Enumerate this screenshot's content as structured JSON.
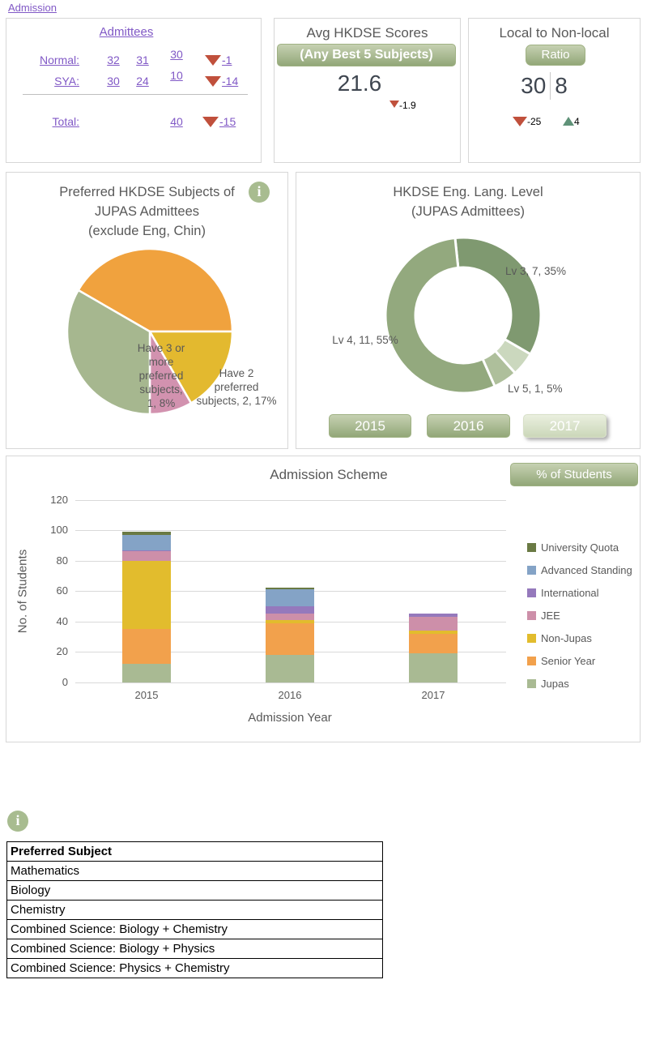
{
  "header": {
    "admission_link": "Admission"
  },
  "icons": {
    "info_glyph": "i"
  },
  "admittees_panel": {
    "title": "Admittees",
    "rows": [
      {
        "label": "Normal:",
        "c1": "32",
        "c2": "31",
        "c3": "30",
        "delta": "-1"
      },
      {
        "label": "SYA:",
        "c1": "30",
        "c2": "24",
        "c3": "10",
        "delta": "-14"
      }
    ],
    "total_label": "Total:",
    "total_value": "40",
    "total_delta": "-15"
  },
  "avg_panel": {
    "title": "Avg HKDSE Scores",
    "button_label": "(Any Best 5 Subjects)",
    "value": "21.6",
    "delta": "-1.9"
  },
  "ratio_panel": {
    "title": "Local to Non-local",
    "button_label": "Ratio",
    "local_value": "30",
    "nonlocal_value": "8",
    "delta_down": "-25",
    "delta_up": "4"
  },
  "info_table": {
    "header": "Preferred Subject",
    "rows": [
      "Mathematics",
      "Biology",
      "Chemistry",
      "Combined Science: Biology + Chemistry",
      "Combined Science: Biology + Physics",
      "Combined Science: Physics + Chemistry"
    ]
  },
  "chart_data": [
    {
      "type": "pie",
      "title": "Preferred HKDSE Subjects of JUPAS Admittees (exclude Eng, Chin)",
      "title_lines": [
        "Preferred HKDSE Subjects of",
        "JUPAS Admittees",
        "(exclude Eng, Chin)"
      ],
      "start_angle": -60,
      "total": 12,
      "slices": [
        {
          "name": "unlabeled-orange",
          "value": 5,
          "pct": 42,
          "color": "#F0A23E",
          "label": ""
        },
        {
          "name": "have-2-preferred",
          "value": 2,
          "pct": 17,
          "color": "#E3B92F",
          "label": "Have 2 preferred subjects, 2, 17%"
        },
        {
          "name": "have-3-or-more-preferred",
          "value": 1,
          "pct": 8,
          "color": "#D292AF",
          "label": "Have 3 or more preferred subjects, 1, 8%"
        },
        {
          "name": "unlabeled-green",
          "value": 4,
          "pct": 33,
          "color": "#A6B78F",
          "label": ""
        }
      ],
      "overlay_labels": [
        {
          "lines": [
            "Have 3 or",
            "more",
            "preferred",
            "subjects,",
            "1, 8%"
          ]
        },
        {
          "lines": [
            "Have 2",
            "preferred",
            "subjects, 2, 17%"
          ]
        }
      ]
    },
    {
      "type": "donut",
      "title": "HKDSE Eng. Lang. Level (JUPAS Admittees)",
      "title_lines": [
        "HKDSE Eng. Lang. Level",
        "(JUPAS Admittees)"
      ],
      "start_angle": -6,
      "total": 20,
      "slices": [
        {
          "name": "lv3",
          "value": 7,
          "pct": 35,
          "color": "#7F9970",
          "label": "Lv 3, 7, 35%"
        },
        {
          "name": "unlabeled",
          "value": 1,
          "pct": 5,
          "color": "#CBD8BE",
          "label": ""
        },
        {
          "name": "lv5",
          "value": 1,
          "pct": 5,
          "color": "#AEBF9B",
          "label": "Lv 5, 1, 5%"
        },
        {
          "name": "lv4",
          "value": 11,
          "pct": 55,
          "color": "#93A97E",
          "label": "Lv 4, 11, 55%"
        }
      ],
      "buttons": [
        {
          "label": "2015",
          "selected": false
        },
        {
          "label": "2016",
          "selected": false
        },
        {
          "label": "2017",
          "selected": true
        }
      ]
    },
    {
      "type": "bar",
      "stacked": true,
      "title": "Admission Scheme",
      "button_label": "% of Students",
      "xlabel": "Admission Year",
      "ylabel": "No. of Students",
      "ylim": [
        0,
        120
      ],
      "ytick_step": 20,
      "grid": true,
      "legend_position": "right",
      "categories": [
        "2015",
        "2016",
        "2017"
      ],
      "series": [
        {
          "name": "Jupas",
          "color": "#A9BA93",
          "values": [
            12,
            18,
            19
          ]
        },
        {
          "name": "Senior Year",
          "color": "#F2A14C",
          "values": [
            23,
            21,
            13
          ]
        },
        {
          "name": "Non-Jupas",
          "color": "#E2BC2D",
          "values": [
            45,
            2,
            2
          ]
        },
        {
          "name": "JEE",
          "color": "#CD8FA9",
          "values": [
            6,
            4,
            9
          ]
        },
        {
          "name": "International",
          "color": "#9579BC",
          "values": [
            1,
            5,
            2
          ]
        },
        {
          "name": "Advanced Standing",
          "color": "#84A3C6",
          "values": [
            10,
            11,
            0
          ]
        },
        {
          "name": "University Quota",
          "color": "#6A7A44",
          "values": [
            2,
            1,
            0
          ]
        }
      ],
      "totals": [
        99,
        62,
        45
      ],
      "legend_order_top_to_bottom": [
        "University Quota",
        "Advanced Standing",
        "International",
        "JEE",
        "Non-Jupas",
        "Senior Year",
        "Jupas"
      ]
    }
  ]
}
